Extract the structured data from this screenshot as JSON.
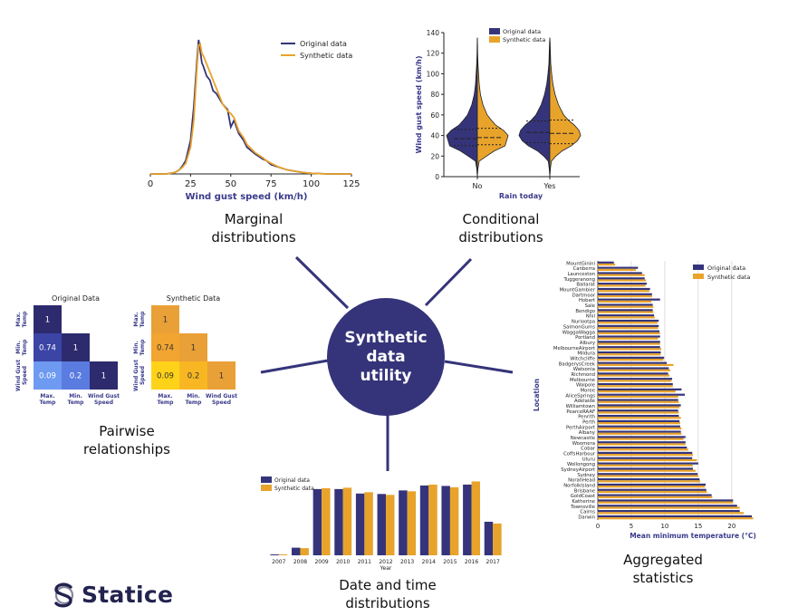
{
  "hub": {
    "lines": [
      "Synthetic",
      "data",
      "utility"
    ]
  },
  "brand": {
    "name": "Statice"
  },
  "colors": {
    "original": "#35347a",
    "synthetic": "#e8a32b",
    "hub": "#35347a",
    "axis_label": "#3a3a8c"
  },
  "captions": {
    "marginal": [
      "Marginal",
      "distributions"
    ],
    "conditional": [
      "Conditional",
      "distributions"
    ],
    "pairwise": [
      "Pairwise",
      "relationships"
    ],
    "datetime": [
      "Date and time",
      "distributions"
    ],
    "aggregated": [
      "Aggregated",
      "statistics"
    ]
  },
  "chart_data": [
    {
      "id": "marginal",
      "type": "line",
      "xlabel": "Wind gust speed (km/h)",
      "xticks": [
        "0",
        "25",
        "50",
        "75",
        "100",
        "125"
      ],
      "xlim": [
        0,
        125
      ],
      "legend": "top-right",
      "x": [
        0,
        10,
        15,
        18,
        20,
        22,
        25,
        27,
        29,
        30,
        31,
        32,
        33,
        35,
        37,
        39,
        41,
        43,
        45,
        48,
        50,
        52,
        55,
        58,
        60,
        65,
        70,
        72,
        75,
        80,
        85,
        90,
        95,
        100,
        110,
        125
      ],
      "series": [
        {
          "name": "Original data",
          "values": [
            0,
            0,
            0.01,
            0.03,
            0.06,
            0.1,
            0.25,
            0.5,
            0.85,
            1.0,
            0.92,
            0.83,
            0.8,
            0.73,
            0.7,
            0.62,
            0.6,
            0.56,
            0.52,
            0.48,
            0.35,
            0.4,
            0.3,
            0.25,
            0.2,
            0.15,
            0.11,
            0.1,
            0.07,
            0.05,
            0.03,
            0.02,
            0.01,
            0.005,
            0,
            0
          ]
        },
        {
          "name": "Synthetic data",
          "values": [
            0,
            0,
            0.01,
            0.03,
            0.05,
            0.08,
            0.2,
            0.4,
            0.8,
            0.96,
            0.97,
            0.9,
            0.88,
            0.82,
            0.76,
            0.7,
            0.64,
            0.58,
            0.52,
            0.47,
            0.45,
            0.42,
            0.32,
            0.27,
            0.22,
            0.16,
            0.12,
            0.1,
            0.08,
            0.05,
            0.03,
            0.02,
            0.01,
            0.005,
            0,
            0
          ]
        }
      ]
    },
    {
      "id": "conditional",
      "type": "violin",
      "ylabel": "Wind gust speed (km/h)",
      "xlabel": "Rain today",
      "categories": [
        "No",
        "Yes"
      ],
      "yticks": [
        "0",
        "20",
        "40",
        "60",
        "80",
        "100",
        "120",
        "140"
      ],
      "ylim": [
        0,
        140
      ],
      "series": [
        {
          "name": "Original data",
          "quartiles": [
            [
              30,
              37,
              46
            ],
            [
              33,
              43,
              54
            ]
          ]
        },
        {
          "name": "Synthetic data",
          "quartiles": [
            [
              31,
              38,
              47
            ],
            [
              32,
              42,
              55
            ]
          ]
        }
      ],
      "legend": "top-right"
    },
    {
      "id": "pairwise-original",
      "type": "heatmap",
      "title": "Original Data",
      "ylabels": [
        "Max.\nTemp",
        "Min.\nTemp",
        "Wind Gust\nSpeed"
      ],
      "xlabels": [
        "Max.\nTemp",
        "Min.\nTemp",
        "Wind Gust\nSpeed"
      ],
      "values": [
        [
          1,
          null,
          null
        ],
        [
          0.74,
          1,
          null
        ],
        [
          0.09,
          0.2,
          1
        ]
      ],
      "labels": [
        [
          "1",
          "",
          ""
        ],
        [
          "0.74",
          "1",
          ""
        ],
        [
          "0.09",
          "0.2",
          "1"
        ]
      ]
    },
    {
      "id": "pairwise-synthetic",
      "type": "heatmap",
      "title": "Synthetic Data",
      "ylabels": [
        "Max.\nTemp",
        "Min.\nTemp",
        "Wind Gust\nSpeed"
      ],
      "xlabels": [
        "Max.\nTemp",
        "Min.\nTemp",
        "Wind Gust\nSpeed"
      ],
      "values": [
        [
          1,
          null,
          null
        ],
        [
          0.74,
          1,
          null
        ],
        [
          0.09,
          0.2,
          1
        ]
      ],
      "labels": [
        [
          "1",
          "",
          ""
        ],
        [
          "0.74",
          "1",
          ""
        ],
        [
          "0.09",
          "0.2",
          "1"
        ]
      ]
    },
    {
      "id": "datetime",
      "type": "bar",
      "xlabel": "Year",
      "categories": [
        "2007",
        "2008",
        "2009",
        "2010",
        "2011",
        "2012",
        "2013",
        "2014",
        "2015",
        "2016",
        "2017"
      ],
      "series": [
        {
          "name": "Original data",
          "values": [
            0.2,
            1.7,
            14.8,
            14.8,
            13.8,
            13.7,
            14.5,
            15.6,
            15.5,
            15.8,
            7.5
          ]
        },
        {
          "name": "Synthetic data",
          "values": [
            0.2,
            1.6,
            15.0,
            15.1,
            14.1,
            13.5,
            14.3,
            15.8,
            15.2,
            16.5,
            7.1
          ]
        }
      ],
      "ylim": [
        0,
        17
      ],
      "legend": "top-left"
    },
    {
      "id": "aggregated",
      "type": "bar",
      "orientation": "horizontal",
      "xlabel": "Mean minimum temperature (°C)",
      "ylabel": "Location",
      "xticks": [
        "0",
        "5",
        "10",
        "15",
        "20"
      ],
      "xlim": [
        0,
        23
      ],
      "legend": "top-right",
      "categories": [
        "MountGinini",
        "Canberra",
        "Launceston",
        "Tuggeranong",
        "Ballarat",
        "MountGambier",
        "Dartmoor",
        "Hobart",
        "Sale",
        "Bendigo",
        "Nhil",
        "Nuriootpa",
        "SalmonGums",
        "WaggaWagga",
        "Portland",
        "Albury",
        "MelbourneAirport",
        "Mildura",
        "Witchcliffe",
        "BadgerysCreek",
        "Watsonia",
        "Richmond",
        "Melbourne",
        "Walpole",
        "Moree",
        "AliceSprings",
        "Adelaide",
        "Williamtown",
        "PearceRAAF",
        "Penrith",
        "Perth",
        "PerthAirport",
        "Albany",
        "Newcastle",
        "Woomera",
        "Cobar",
        "CoffsHarbour",
        "Uluru",
        "Wollongong",
        "SydneyAirport",
        "Sydney",
        "NorahHead",
        "NorfolkIsland",
        "Brisbane",
        "GoldCoast",
        "Katherine",
        "Townsville",
        "Cairns",
        "Darwin"
      ],
      "series": [
        {
          "name": "Original data",
          "values": [
            2.4,
            6.0,
            6.6,
            7.0,
            7.3,
            7.8,
            8.1,
            9.3,
            8.2,
            8.2,
            8.4,
            9.1,
            9.1,
            9.2,
            9.3,
            9.3,
            9.3,
            9.4,
            9.9,
            10.3,
            10.6,
            10.5,
            11.1,
            11.2,
            12.5,
            13.0,
            12.0,
            12.4,
            12.0,
            12.1,
            12.2,
            12.3,
            12.4,
            13.1,
            13.1,
            13.3,
            14.1,
            14.1,
            15.0,
            14.2,
            14.9,
            15.2,
            16.1,
            16.2,
            17.0,
            20.2,
            20.8,
            21.2,
            23.0
          ]
        },
        {
          "name": "Synthetic data",
          "values": [
            2.6,
            5.7,
            7.0,
            7.2,
            7.1,
            7.7,
            8.1,
            8.0,
            8.3,
            8.3,
            8.5,
            8.9,
            9.0,
            9.3,
            9.0,
            9.3,
            9.5,
            9.4,
            9.8,
            11.3,
            10.8,
            10.7,
            11.0,
            11.2,
            11.6,
            12.0,
            12.1,
            12.2,
            12.1,
            12.4,
            12.3,
            12.5,
            12.5,
            12.8,
            13.1,
            13.5,
            14.2,
            14.8,
            14.2,
            14.6,
            15.0,
            15.3,
            16.0,
            16.3,
            17.1,
            20.2,
            21.2,
            21.8,
            23.2
          ]
        }
      ]
    }
  ]
}
